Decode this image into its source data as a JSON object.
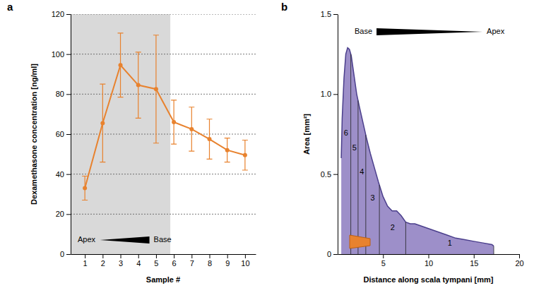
{
  "chart_data": [
    {
      "panel": "a",
      "type": "line",
      "x_label": "Sample #",
      "y_label": "Dexamethasone concentration [ng/ml]",
      "x": [
        1,
        2,
        3,
        4,
        5,
        6,
        7,
        8,
        9,
        10
      ],
      "series": [
        {
          "color": "#e8822e",
          "marker": "circle",
          "values": [
            33,
            65.5,
            94.5,
            84.5,
            82.5,
            66,
            62.5,
            57.5,
            52,
            49.5
          ],
          "errors": [
            6,
            19.5,
            16,
            16.5,
            27,
            11,
            11,
            10,
            6,
            7.5
          ]
        }
      ],
      "xlim": [
        0.2,
        10.6
      ],
      "xticks": [
        1,
        2,
        3,
        4,
        5,
        6,
        7,
        8,
        9,
        10
      ],
      "ylim": [
        0,
        120
      ],
      "yticks": [
        0,
        20,
        40,
        60,
        80,
        100,
        120
      ],
      "grid": true,
      "shaded_xlim": [
        0.2,
        5.8
      ],
      "gradient": {
        "start": "Apex",
        "end": "Base"
      }
    },
    {
      "panel": "b",
      "type": "area",
      "x_label": "Distance along scala tympani [mm]",
      "y_label": "Area [mm²]",
      "x": [
        0.4,
        0.5,
        0.7,
        0.9,
        1.1,
        1.3,
        1.5,
        1.8,
        2.1,
        2.4,
        2.8,
        3.2,
        3.6,
        4.0,
        4.5,
        5.0,
        5.5,
        6.0,
        6.5,
        7.0,
        7.5,
        8.0,
        8.5,
        9.0,
        10,
        11,
        12,
        13,
        14,
        15,
        16,
        17,
        17.2
      ],
      "values": [
        0.6,
        0.85,
        1.1,
        1.25,
        1.29,
        1.28,
        1.24,
        1.12,
        1.0,
        0.92,
        0.82,
        0.72,
        0.63,
        0.55,
        0.45,
        0.36,
        0.3,
        0.27,
        0.27,
        0.24,
        0.2,
        0.19,
        0.19,
        0.18,
        0.16,
        0.14,
        0.12,
        0.1,
        0.09,
        0.08,
        0.07,
        0.06,
        0.05
      ],
      "color": "#9d8fc9",
      "xlim": [
        0,
        20
      ],
      "xticks": [
        5,
        10,
        15,
        20
      ],
      "ylim": [
        0,
        1.5
      ],
      "yticks": [
        0,
        0.5,
        {
          "value": 1,
          "label": "1.0"
        },
        1.5
      ],
      "sections": [
        {
          "label": "6",
          "from": 0.4,
          "to": 1.45
        },
        {
          "label": "5",
          "from": 1.45,
          "to": 2.25
        },
        {
          "label": "4",
          "from": 2.25,
          "to": 3.1
        },
        {
          "label": "3",
          "from": 3.1,
          "to": 4.6
        },
        {
          "label": "2",
          "from": 4.6,
          "to": 7.5
        },
        {
          "label": "1",
          "from": 7.5,
          "to": 17.2
        }
      ],
      "gradient": {
        "start": "Base",
        "end": "Apex"
      }
    }
  ]
}
